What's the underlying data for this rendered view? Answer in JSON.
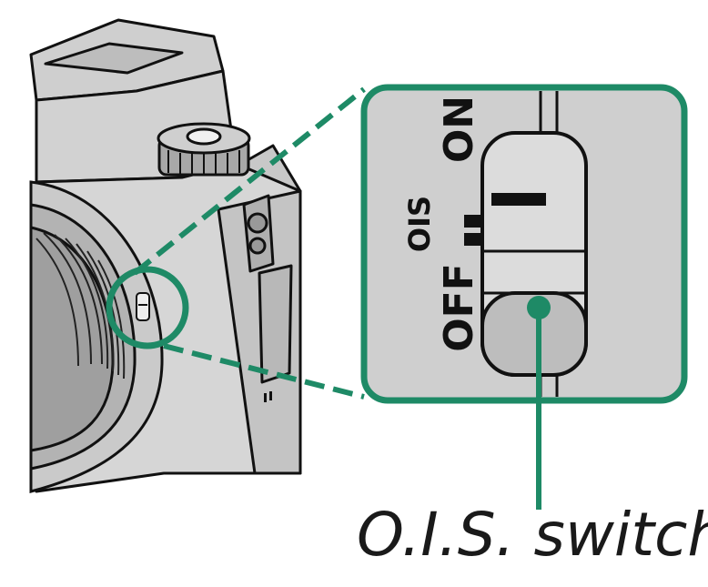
{
  "caption": "O.I.S. switch",
  "switch_labels": {
    "off": "OFF",
    "ois": "OIS",
    "on": "ON"
  },
  "colors": {
    "accent": "#1e8a66",
    "body_fill": "#d6d6d6",
    "outline": "#111111",
    "inset_fill": "#cfcfcf"
  }
}
